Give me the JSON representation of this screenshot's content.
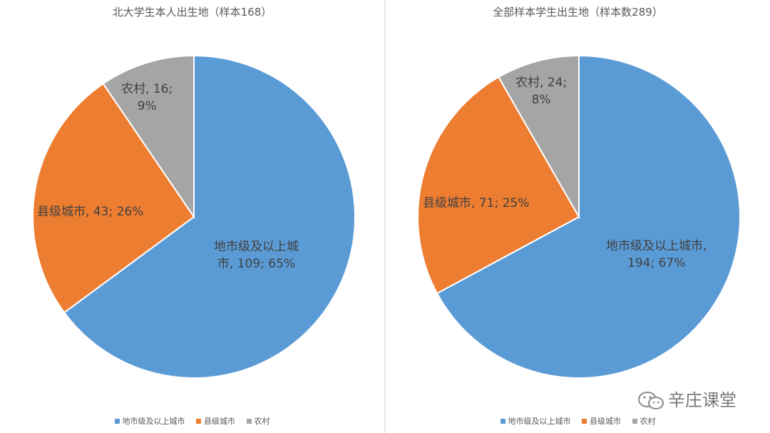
{
  "colors": {
    "city": "#5b9bd5",
    "county": "#ed7d31",
    "rural": "#a5a5a5"
  },
  "legend": {
    "items": [
      {
        "label": "地市级及以上城市",
        "color": "#5b9bd5"
      },
      {
        "label": "县级城市",
        "color": "#ed7d31"
      },
      {
        "label": "农村",
        "color": "#a5a5a5"
      }
    ]
  },
  "chart_data": [
    {
      "type": "pie",
      "title": "北大学生本人出生地（样本168）",
      "categories": [
        "地市级及以上城市",
        "县级城市",
        "农村"
      ],
      "values": [
        109,
        43,
        16
      ],
      "percents": [
        65,
        26,
        9
      ],
      "labels": [
        {
          "lines": [
            "地市级及以上城",
            "市, 109; 65%"
          ]
        },
        {
          "lines": [
            "县级城市, 43; 26%"
          ]
        },
        {
          "lines": [
            "农村, 16;",
            "9%"
          ]
        }
      ],
      "legend_position": "bottom"
    },
    {
      "type": "pie",
      "title": "全部样本学生出生地（样本数289）",
      "categories": [
        "地市级及以上城市",
        "县级城市",
        "农村"
      ],
      "values": [
        194,
        71,
        24
      ],
      "percents": [
        67,
        25,
        8
      ],
      "labels": [
        {
          "lines": [
            "地市级及以上城市,",
            "194; 67%"
          ]
        },
        {
          "lines": [
            "县级城市, 71; 25%"
          ]
        },
        {
          "lines": [
            "农村, 24;",
            "8%"
          ]
        }
      ],
      "legend_position": "bottom"
    }
  ],
  "watermark": {
    "text": "辛庄课堂"
  }
}
